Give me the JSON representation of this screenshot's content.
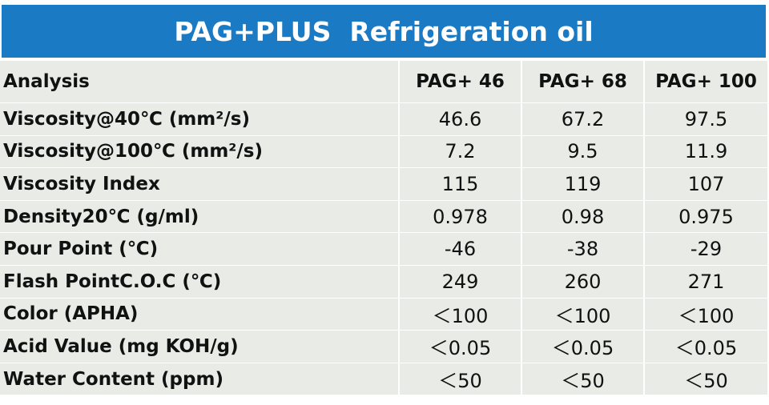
{
  "title": "PAG+PLUS  Refrigeration oil",
  "table": {
    "header": [
      "Analysis",
      "PAG+ 46",
      "PAG+ 68",
      "PAG+ 100"
    ],
    "rows": [
      {
        "label": "Viscosity@40℃ (mm²/s)",
        "values": [
          "46.6",
          "67.2",
          "97.5"
        ]
      },
      {
        "label": "Viscosity@100℃ (mm²/s)",
        "values": [
          "7.2",
          "9.5",
          "11.9"
        ]
      },
      {
        "label": "Viscosity Index",
        "values": [
          "115",
          "119",
          "107"
        ]
      },
      {
        "label": "Density20℃ (g/ml)",
        "values": [
          "0.978",
          "0.98",
          "0.975"
        ]
      },
      {
        "label": "Pour Point (℃)",
        "values": [
          "-46",
          "-38",
          "-29"
        ]
      },
      {
        "label": "Flash PointC.O.C (℃)",
        "values": [
          "249",
          "260",
          "271"
        ]
      },
      {
        "label": "Color (APHA)",
        "values": [
          "＜100",
          "＜100",
          "＜100"
        ]
      },
      {
        "label": "Acid Value (mg KOH/g)",
        "values": [
          "＜0.05",
          "＜0.05",
          "＜0.05"
        ]
      },
      {
        "label": "Water Content (ppm)",
        "values": [
          "＜50",
          "＜50",
          "＜50"
        ]
      }
    ]
  },
  "colors": {
    "title_background": "#1a7bc4",
    "title_text": "#ffffff",
    "cell_background": "#e8ebe6",
    "cell_text": "#111111"
  }
}
